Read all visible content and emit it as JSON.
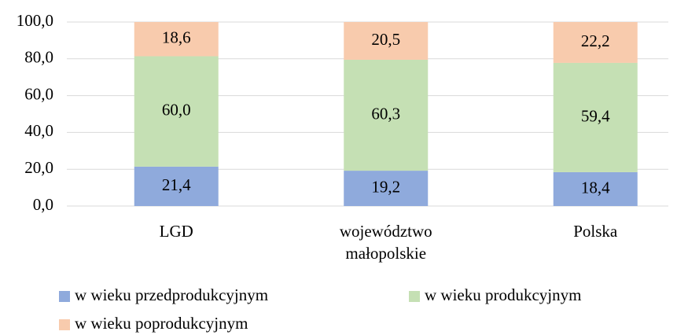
{
  "chart_data": {
    "type": "stacked_bar",
    "categories": [
      "LGD",
      "województwo\nmałopolskie",
      "Polska"
    ],
    "series": [
      {
        "name": "w wieku przedprodukcyjnym",
        "color": "#8faadc",
        "values": [
          21.4,
          19.2,
          18.4
        ],
        "value_labels": [
          "21,4",
          "19,2",
          "18,4"
        ]
      },
      {
        "name": "w wieku produkcyjnym",
        "color": "#c5e0b4",
        "values": [
          60.0,
          60.3,
          59.4
        ],
        "value_labels": [
          "60,0",
          "60,3",
          "59,4"
        ]
      },
      {
        "name": "w wieku poprodukcyjnym",
        "color": "#f8cbad",
        "values": [
          18.6,
          20.5,
          22.2
        ],
        "value_labels": [
          "18,6",
          "20,5",
          "22,2"
        ]
      }
    ],
    "ylim": [
      0,
      100
    ],
    "yticks": [
      {
        "value": 0,
        "label": "0,0"
      },
      {
        "value": 20,
        "label": "20,0"
      },
      {
        "value": 40,
        "label": "40,0"
      },
      {
        "value": 60,
        "label": "60,0"
      },
      {
        "value": 80,
        "label": "80,0"
      },
      {
        "value": 100,
        "label": "100,0"
      }
    ],
    "grid": true
  }
}
